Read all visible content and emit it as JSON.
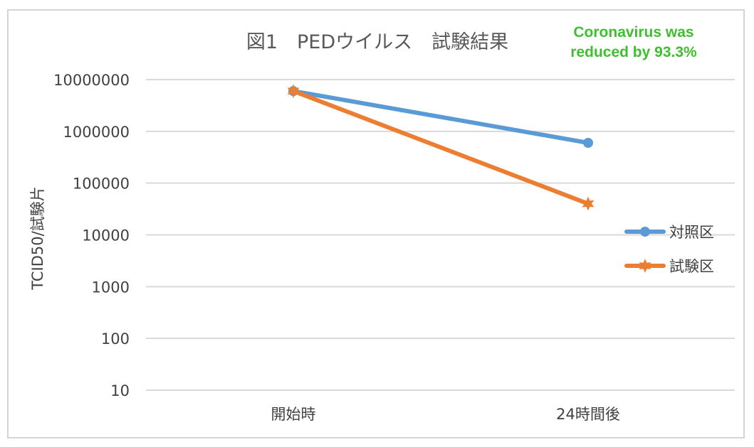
{
  "chart_data": {
    "type": "line",
    "title": "図1　PEDウイルス　試験結果",
    "annotation": [
      "Coronavirus was",
      "reduced by 93.3%"
    ],
    "annotation_color": "#3fbf2f",
    "ylabel": "TCID50/試験片",
    "xlabel": "",
    "y_scale": "log",
    "ylim": [
      10,
      10000000
    ],
    "y_ticks": [
      "10000000",
      "1000000",
      "100000",
      "10000",
      "1000",
      "100",
      "10"
    ],
    "categories": [
      "開始時",
      "24時間後"
    ],
    "series": [
      {
        "name": "対照区",
        "color": "#5b9bd5",
        "marker": "circle",
        "values": [
          6000000,
          600000
        ]
      },
      {
        "name": "試験区",
        "color": "#ed7d31",
        "marker": "star",
        "values": [
          6000000,
          40000
        ]
      }
    ],
    "legend_position": "right",
    "grid": true
  }
}
